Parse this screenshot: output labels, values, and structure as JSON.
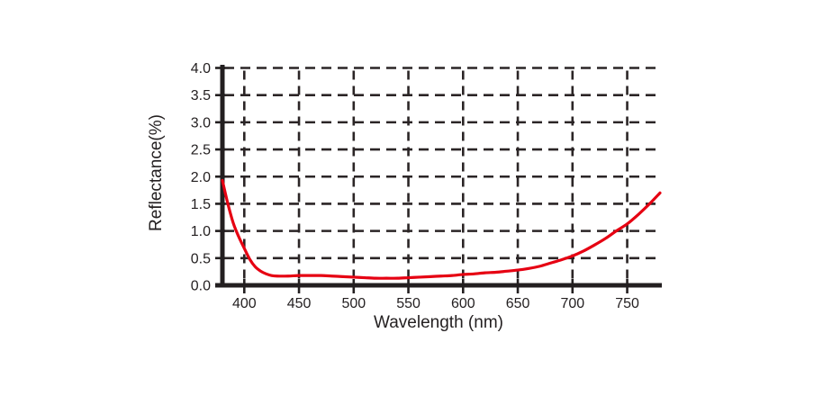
{
  "page": {
    "background": "#ffffff"
  },
  "chart_data": {
    "type": "line",
    "title": "",
    "xlabel": "Wavelength (nm)",
    "ylabel": "Reflectance(%)",
    "xlim": [
      380,
      780
    ],
    "ylim": [
      0.0,
      4.0
    ],
    "x_ticks": [
      400,
      450,
      500,
      550,
      600,
      650,
      700,
      750
    ],
    "x_tick_labels": [
      "400",
      "450",
      "500",
      "550",
      "600",
      "650",
      "700",
      "750"
    ],
    "y_ticks": [
      0.0,
      0.5,
      1.0,
      1.5,
      2.0,
      2.5,
      3.0,
      3.5,
      4.0
    ],
    "y_tick_labels": [
      "0.0",
      "0.5",
      "1.0",
      "1.5",
      "2.0",
      "2.5",
      "3.0",
      "3.5",
      "4.0"
    ],
    "grid": "dashed",
    "legend_position": "none",
    "axis_color": "#231f20",
    "grid_color": "#2b2526",
    "text_color": "#231f20",
    "series": [
      {
        "name": "Reflectance",
        "color": "#e60012",
        "points": [
          [
            380,
            1.93
          ],
          [
            385,
            1.5
          ],
          [
            390,
            1.14
          ],
          [
            395,
            0.89
          ],
          [
            400,
            0.68
          ],
          [
            405,
            0.48
          ],
          [
            410,
            0.34
          ],
          [
            415,
            0.26
          ],
          [
            420,
            0.21
          ],
          [
            425,
            0.18
          ],
          [
            430,
            0.17
          ],
          [
            440,
            0.17
          ],
          [
            450,
            0.18
          ],
          [
            460,
            0.18
          ],
          [
            470,
            0.18
          ],
          [
            480,
            0.17
          ],
          [
            490,
            0.16
          ],
          [
            500,
            0.15
          ],
          [
            510,
            0.14
          ],
          [
            520,
            0.13
          ],
          [
            530,
            0.13
          ],
          [
            540,
            0.13
          ],
          [
            550,
            0.14
          ],
          [
            560,
            0.15
          ],
          [
            570,
            0.16
          ],
          [
            580,
            0.17
          ],
          [
            590,
            0.18
          ],
          [
            600,
            0.2
          ],
          [
            610,
            0.21
          ],
          [
            620,
            0.23
          ],
          [
            630,
            0.24
          ],
          [
            640,
            0.26
          ],
          [
            650,
            0.28
          ],
          [
            660,
            0.31
          ],
          [
            670,
            0.35
          ],
          [
            680,
            0.41
          ],
          [
            690,
            0.47
          ],
          [
            700,
            0.54
          ],
          [
            710,
            0.63
          ],
          [
            720,
            0.74
          ],
          [
            730,
            0.86
          ],
          [
            740,
            1.0
          ],
          [
            750,
            1.13
          ],
          [
            760,
            1.3
          ],
          [
            770,
            1.49
          ],
          [
            780,
            1.7
          ]
        ]
      }
    ]
  }
}
